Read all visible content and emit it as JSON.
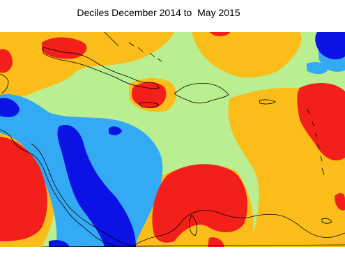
{
  "title": "Deciles December 2014 to  May 2015",
  "colors": {
    "very_dry": "#0a12e6",
    "dry": "#35aaf4",
    "near_normal": "#b9ef91",
    "wet": "#fbbd19",
    "very_wet": "#f21f1a",
    "coastline": "#000000"
  }
}
